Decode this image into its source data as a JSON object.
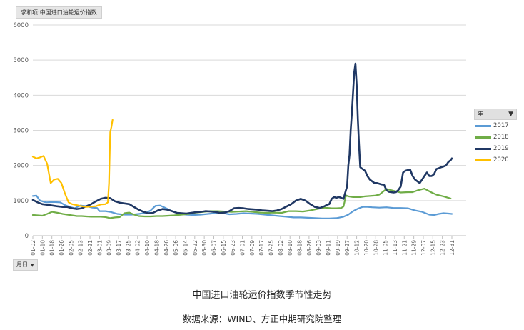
{
  "pivot_field_label": "求和项:中国进口油轮运价指数",
  "month_field_label": "月日",
  "legend_header": "年",
  "caption_title": "中国进口油轮运价指数季节性走势",
  "caption_source": "数据来源：WIND、方正中期研究院整理",
  "chart_data": {
    "type": "line",
    "title": "",
    "xlabel": "",
    "ylabel": "",
    "ylim": [
      0,
      6000
    ],
    "yticks": [
      0,
      1000,
      2000,
      3000,
      4000,
      5000,
      6000
    ],
    "xlim": [
      1,
      365
    ],
    "xticks": [
      {
        "day": 1,
        "label": "01-02"
      },
      {
        "day": 9,
        "label": "01-10"
      },
      {
        "day": 17,
        "label": "01-18"
      },
      {
        "day": 25,
        "label": "01-26"
      },
      {
        "day": 33,
        "label": "02-05"
      },
      {
        "day": 41,
        "label": "02-13"
      },
      {
        "day": 49,
        "label": "02-21"
      },
      {
        "day": 57,
        "label": "03-01"
      },
      {
        "day": 65,
        "label": "03-09"
      },
      {
        "day": 73,
        "label": "03-17"
      },
      {
        "day": 81,
        "label": "03-25"
      },
      {
        "day": 89,
        "label": "04-02"
      },
      {
        "day": 97,
        "label": "04-10"
      },
      {
        "day": 105,
        "label": "04-18"
      },
      {
        "day": 113,
        "label": "04-26"
      },
      {
        "day": 121,
        "label": "05-06"
      },
      {
        "day": 129,
        "label": "05-14"
      },
      {
        "day": 137,
        "label": "05-22"
      },
      {
        "day": 145,
        "label": "05-30"
      },
      {
        "day": 153,
        "label": "06-07"
      },
      {
        "day": 161,
        "label": "06-15"
      },
      {
        "day": 169,
        "label": "06-23"
      },
      {
        "day": 177,
        "label": "07-01"
      },
      {
        "day": 185,
        "label": "07-09"
      },
      {
        "day": 193,
        "label": "07-17"
      },
      {
        "day": 201,
        "label": "07-25"
      },
      {
        "day": 209,
        "label": "08-02"
      },
      {
        "day": 217,
        "label": "08-10"
      },
      {
        "day": 225,
        "label": "08-18"
      },
      {
        "day": 233,
        "label": "08-26"
      },
      {
        "day": 241,
        "label": "09-03"
      },
      {
        "day": 249,
        "label": "09-11"
      },
      {
        "day": 257,
        "label": "09-19"
      },
      {
        "day": 265,
        "label": "09-27"
      },
      {
        "day": 273,
        "label": "10-12"
      },
      {
        "day": 281,
        "label": "10-20"
      },
      {
        "day": 289,
        "label": "10-28"
      },
      {
        "day": 297,
        "label": "11-05"
      },
      {
        "day": 305,
        "label": "11-13"
      },
      {
        "day": 313,
        "label": "11-21"
      },
      {
        "day": 321,
        "label": "11-29"
      },
      {
        "day": 329,
        "label": "12-07"
      },
      {
        "day": 337,
        "label": "12-15"
      },
      {
        "day": 345,
        "label": "12-23"
      },
      {
        "day": 353,
        "label": "12-31"
      }
    ],
    "grid": true,
    "legend_position": "right",
    "series": [
      {
        "name": "2017",
        "color": "#5B9BD5",
        "x": [
          1,
          4,
          7,
          12,
          18,
          24,
          28,
          32,
          36,
          41,
          46,
          51,
          55,
          57,
          62,
          66,
          72,
          78,
          84,
          90,
          96,
          100,
          104,
          108,
          113,
          118,
          124,
          130,
          136,
          142,
          148,
          154,
          160,
          166,
          172,
          178,
          184,
          190,
          196,
          202,
          208,
          214,
          220,
          226,
          232,
          238,
          244,
          250,
          256,
          262,
          266,
          270,
          274,
          278,
          282,
          286,
          292,
          298,
          304,
          310,
          316,
          322,
          328,
          334,
          338,
          342,
          346,
          350,
          353
        ],
        "y": [
          1130,
          1140,
          1000,
          950,
          960,
          950,
          870,
          820,
          780,
          860,
          840,
          800,
          790,
          700,
          700,
          680,
          620,
          600,
          600,
          620,
          650,
          720,
          850,
          860,
          780,
          700,
          620,
          600,
          590,
          600,
          620,
          640,
          650,
          610,
          620,
          640,
          630,
          620,
          600,
          580,
          560,
          540,
          520,
          520,
          510,
          500,
          490,
          490,
          500,
          540,
          600,
          700,
          770,
          820,
          820,
          810,
          800,
          810,
          790,
          790,
          780,
          720,
          680,
          600,
          590,
          620,
          640,
          630,
          620
        ]
      },
      {
        "name": "2018",
        "color": "#70AD47",
        "x": [
          1,
          5,
          9,
          13,
          17,
          22,
          26,
          30,
          34,
          38,
          42,
          46,
          50,
          54,
          58,
          62,
          66,
          70,
          74,
          78,
          82,
          86,
          90,
          95,
          100,
          105,
          110,
          115,
          120,
          126,
          132,
          138,
          144,
          150,
          156,
          162,
          168,
          174,
          180,
          186,
          192,
          198,
          204,
          210,
          216,
          222,
          228,
          234,
          240,
          246,
          252,
          256,
          260,
          262,
          264,
          266,
          270,
          276,
          280,
          284,
          288,
          292,
          298,
          304,
          310,
          316,
          320,
          324,
          330,
          336,
          340,
          346,
          352
        ],
        "y": [
          590,
          580,
          570,
          620,
          680,
          650,
          620,
          600,
          580,
          560,
          560,
          550,
          540,
          540,
          540,
          530,
          500,
          520,
          530,
          640,
          660,
          600,
          560,
          550,
          550,
          560,
          560,
          570,
          580,
          600,
          620,
          660,
          680,
          700,
          700,
          690,
          680,
          690,
          700,
          680,
          660,
          650,
          660,
          650,
          700,
          700,
          690,
          720,
          760,
          800,
          780,
          780,
          790,
          830,
          1150,
          1120,
          1100,
          1100,
          1120,
          1130,
          1140,
          1170,
          1330,
          1280,
          1230,
          1240,
          1240,
          1290,
          1340,
          1230,
          1170,
          1120,
          1060
        ]
      },
      {
        "name": "2019",
        "color": "#203864",
        "x": [
          1,
          5,
          9,
          13,
          17,
          21,
          26,
          30,
          34,
          38,
          42,
          46,
          50,
          54,
          58,
          62,
          66,
          70,
          74,
          78,
          82,
          86,
          90,
          94,
          98,
          102,
          106,
          110,
          114,
          118,
          122,
          126,
          130,
          134,
          138,
          142,
          146,
          150,
          154,
          158,
          162,
          166,
          170,
          174,
          178,
          182,
          186,
          190,
          194,
          198,
          202,
          206,
          210,
          214,
          218,
          222,
          226,
          230,
          234,
          238,
          242,
          246,
          248,
          250,
          252,
          254,
          256,
          258,
          260,
          262,
          264,
          265,
          266,
          267,
          268,
          269,
          270,
          271,
          272,
          273,
          274,
          275,
          276,
          278,
          280,
          282,
          284,
          286,
          288,
          290,
          292,
          294,
          296,
          298,
          300,
          302,
          304,
          306,
          308,
          310,
          312,
          314,
          316,
          318,
          320,
          322,
          324,
          326,
          328,
          330,
          332,
          334,
          336,
          338,
          340,
          342,
          344,
          346,
          348,
          350,
          352,
          353
        ],
        "y": [
          1020,
          950,
          900,
          880,
          860,
          840,
          820,
          820,
          780,
          760,
          780,
          840,
          900,
          980,
          1050,
          1080,
          1070,
          980,
          940,
          920,
          900,
          820,
          740,
          680,
          640,
          650,
          720,
          760,
          740,
          700,
          650,
          640,
          630,
          650,
          670,
          680,
          700,
          690,
          680,
          650,
          660,
          700,
          780,
          790,
          780,
          760,
          750,
          740,
          720,
          710,
          700,
          720,
          760,
          830,
          900,
          1000,
          1050,
          1000,
          900,
          820,
          790,
          840,
          880,
          900,
          1050,
          1100,
          1080,
          1100,
          1080,
          1050,
          1300,
          1400,
          2000,
          2300,
          3000,
          3500,
          4100,
          4650,
          4900,
          4300,
          3300,
          2600,
          1950,
          1900,
          1850,
          1700,
          1600,
          1550,
          1500,
          1500,
          1480,
          1460,
          1450,
          1300,
          1250,
          1240,
          1230,
          1240,
          1300,
          1400,
          1800,
          1850,
          1870,
          1880,
          1700,
          1600,
          1550,
          1500,
          1600,
          1700,
          1800,
          1700,
          1700,
          1750,
          1900,
          1920,
          1950,
          1970,
          2000,
          2100,
          2150,
          2200
        ]
      },
      {
        "name": "2020",
        "color": "#FFC000",
        "x": [
          1,
          4,
          7,
          10,
          13,
          16,
          19,
          22,
          25,
          28,
          31,
          34,
          38,
          42,
          46,
          50,
          54,
          58,
          62,
          64,
          65,
          66,
          67,
          68
        ],
        "y": [
          2250,
          2200,
          2230,
          2270,
          2050,
          1500,
          1600,
          1620,
          1500,
          1200,
          950,
          900,
          870,
          840,
          820,
          830,
          840,
          890,
          900,
          950,
          1500,
          2950,
          3100,
          3300
        ]
      }
    ]
  }
}
